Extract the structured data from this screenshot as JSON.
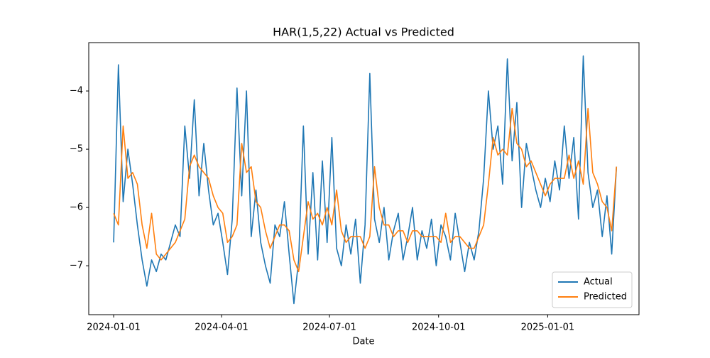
{
  "chart_data": {
    "type": "line",
    "title": "HAR(1,5,22) Actual vs Predicted",
    "x_label": "Date",
    "x": [
      "2024-01-01",
      "2024-01-05",
      "2024-01-09",
      "2024-01-13",
      "2024-01-17",
      "2024-01-21",
      "2024-01-25",
      "2024-01-29",
      "2024-02-02",
      "2024-02-06",
      "2024-02-10",
      "2024-02-14",
      "2024-02-18",
      "2024-02-22",
      "2024-02-26",
      "2024-03-01",
      "2024-03-05",
      "2024-03-09",
      "2024-03-13",
      "2024-03-17",
      "2024-03-21",
      "2024-03-25",
      "2024-03-29",
      "2024-04-02",
      "2024-04-06",
      "2024-04-10",
      "2024-04-14",
      "2024-04-18",
      "2024-04-22",
      "2024-04-26",
      "2024-04-30",
      "2024-05-04",
      "2024-05-08",
      "2024-05-12",
      "2024-05-16",
      "2024-05-20",
      "2024-05-24",
      "2024-05-28",
      "2024-06-01",
      "2024-06-05",
      "2024-06-09",
      "2024-06-13",
      "2024-06-17",
      "2024-06-21",
      "2024-06-25",
      "2024-06-29",
      "2024-07-03",
      "2024-07-07",
      "2024-07-11",
      "2024-07-15",
      "2024-07-19",
      "2024-07-23",
      "2024-07-27",
      "2024-07-31",
      "2024-08-04",
      "2024-08-08",
      "2024-08-12",
      "2024-08-16",
      "2024-08-20",
      "2024-08-24",
      "2024-08-28",
      "2024-09-01",
      "2024-09-05",
      "2024-09-09",
      "2024-09-13",
      "2024-09-17",
      "2024-09-21",
      "2024-09-25",
      "2024-09-29",
      "2024-10-03",
      "2024-10-07",
      "2024-10-11",
      "2024-10-15",
      "2024-10-19",
      "2024-10-23",
      "2024-10-27",
      "2024-10-31",
      "2024-11-04",
      "2024-11-08",
      "2024-11-12",
      "2024-11-16",
      "2024-11-20",
      "2024-11-24",
      "2024-11-28",
      "2024-12-02",
      "2024-12-06",
      "2024-12-10",
      "2024-12-14",
      "2024-12-18",
      "2024-12-22",
      "2024-12-26",
      "2024-12-30",
      "2025-01-03",
      "2025-01-07",
      "2025-01-11",
      "2025-01-15",
      "2025-01-19",
      "2025-01-23",
      "2025-01-27",
      "2025-01-31",
      "2025-02-04",
      "2025-02-08",
      "2025-02-12",
      "2025-02-16",
      "2025-02-20",
      "2025-02-24",
      "2025-02-28"
    ],
    "series": [
      {
        "name": "Actual",
        "color": "#1f77b4",
        "values": [
          -6.6,
          -3.55,
          -5.9,
          -5.0,
          -5.6,
          -6.3,
          -6.9,
          -7.35,
          -6.9,
          -7.1,
          -6.8,
          -6.9,
          -6.6,
          -6.3,
          -6.5,
          -4.6,
          -5.5,
          -4.15,
          -5.8,
          -4.9,
          -5.7,
          -6.3,
          -6.1,
          -6.6,
          -7.15,
          -6.2,
          -3.95,
          -5.8,
          -4.0,
          -6.5,
          -5.7,
          -6.6,
          -7.0,
          -7.3,
          -6.3,
          -6.5,
          -5.9,
          -6.8,
          -7.65,
          -6.9,
          -4.6,
          -6.8,
          -5.4,
          -6.9,
          -5.2,
          -6.6,
          -4.8,
          -6.7,
          -7.0,
          -6.3,
          -6.8,
          -6.2,
          -7.3,
          -6.3,
          -3.7,
          -6.2,
          -6.6,
          -6.0,
          -6.9,
          -6.4,
          -6.1,
          -6.9,
          -6.5,
          -6.0,
          -6.9,
          -6.4,
          -6.7,
          -6.2,
          -7.0,
          -6.3,
          -6.5,
          -6.9,
          -6.1,
          -6.6,
          -7.1,
          -6.6,
          -6.9,
          -6.4,
          -5.5,
          -4.0,
          -5.0,
          -4.6,
          -5.6,
          -3.45,
          -5.2,
          -4.2,
          -6.0,
          -4.9,
          -5.3,
          -5.7,
          -6.0,
          -5.5,
          -5.9,
          -5.2,
          -5.7,
          -4.6,
          -5.5,
          -4.8,
          -6.2,
          -3.4,
          -5.4,
          -6.0,
          -5.7,
          -6.5,
          -5.8,
          -6.8,
          -5.3
        ]
      },
      {
        "name": "Predicted",
        "color": "#ff7f0e",
        "values": [
          -6.1,
          -6.3,
          -4.6,
          -5.5,
          -5.4,
          -5.6,
          -6.3,
          -6.7,
          -6.1,
          -6.8,
          -6.9,
          -6.8,
          -6.7,
          -6.6,
          -6.4,
          -6.2,
          -5.3,
          -5.1,
          -5.3,
          -5.4,
          -5.5,
          -5.8,
          -6.0,
          -6.1,
          -6.6,
          -6.5,
          -6.3,
          -4.9,
          -5.4,
          -5.3,
          -5.9,
          -6.0,
          -6.4,
          -6.7,
          -6.5,
          -6.3,
          -6.3,
          -6.4,
          -6.9,
          -7.1,
          -6.5,
          -5.9,
          -6.2,
          -6.1,
          -6.3,
          -6.0,
          -6.3,
          -5.7,
          -6.4,
          -6.6,
          -6.5,
          -6.5,
          -6.5,
          -6.7,
          -6.5,
          -5.3,
          -6.0,
          -6.3,
          -6.3,
          -6.5,
          -6.4,
          -6.4,
          -6.6,
          -6.4,
          -6.4,
          -6.5,
          -6.5,
          -6.5,
          -6.5,
          -6.6,
          -6.1,
          -6.6,
          -6.5,
          -6.5,
          -6.6,
          -6.7,
          -6.7,
          -6.5,
          -6.3,
          -5.6,
          -4.8,
          -5.1,
          -5.0,
          -5.1,
          -4.3,
          -4.9,
          -5.0,
          -5.3,
          -5.2,
          -5.4,
          -5.6,
          -5.8,
          -5.6,
          -5.5,
          -5.5,
          -5.5,
          -5.1,
          -5.5,
          -5.2,
          -5.6,
          -4.3,
          -5.4,
          -5.6,
          -5.9,
          -6.0,
          -6.4,
          -5.3
        ]
      }
    ],
    "xlim": [
      "2023-12-11",
      "2025-03-19"
    ],
    "xticks": [
      "2024-01-01",
      "2024-04-01",
      "2024-07-01",
      "2024-10-01",
      "2025-01-01"
    ],
    "ylim": [
      -7.84,
      -3.17
    ],
    "yticks": [
      {
        "value": -4,
        "label": "−4"
      },
      {
        "value": -5,
        "label": "−5"
      },
      {
        "value": -6,
        "label": "−6"
      },
      {
        "value": -7,
        "label": "−7"
      }
    ],
    "legend": "lower right"
  }
}
